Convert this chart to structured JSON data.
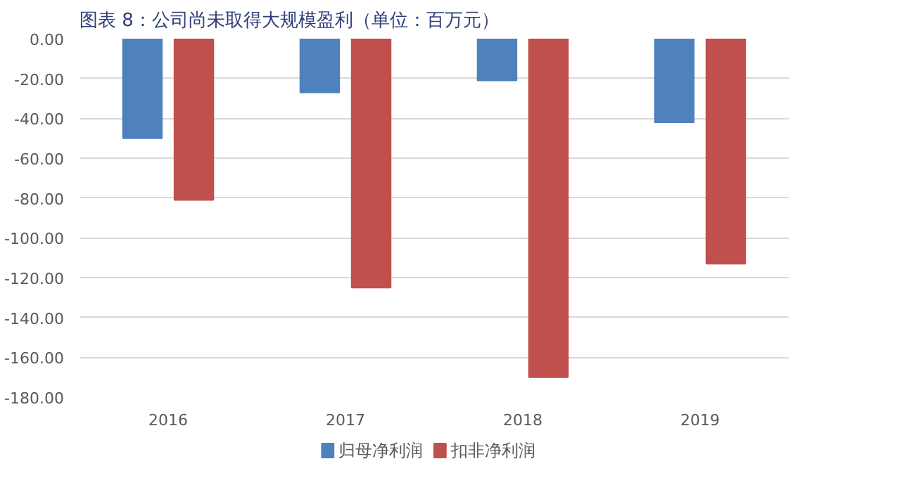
{
  "chart_data": {
    "type": "bar",
    "title": "图表 8：公司尚未取得大规模盈利（单位：百万元）",
    "categories": [
      "2016",
      "2017",
      "2018",
      "2019"
    ],
    "series": [
      {
        "name": "归母净利润",
        "color": "#4f81bd",
        "values": [
          -50,
          -27,
          -21,
          -42
        ]
      },
      {
        "name": "扣非净利润",
        "color": "#c0504d",
        "values": [
          -81,
          -125,
          -170,
          -113
        ]
      }
    ],
    "ylim": [
      -180,
      0
    ],
    "yticks": [
      {
        "value": 0,
        "label": "0.00"
      },
      {
        "value": -20,
        "label": "-20.00"
      },
      {
        "value": -40,
        "label": "-40.00"
      },
      {
        "value": -60,
        "label": "-60.00"
      },
      {
        "value": -80,
        "label": "-80.00"
      },
      {
        "value": -100,
        "label": "-100.00"
      },
      {
        "value": -120,
        "label": "-120.00"
      },
      {
        "value": -140,
        "label": "-140.00"
      },
      {
        "value": -160,
        "label": "-160.00"
      },
      {
        "value": -180,
        "label": "-180.00"
      }
    ],
    "grid": "y",
    "legend": "bottom"
  }
}
